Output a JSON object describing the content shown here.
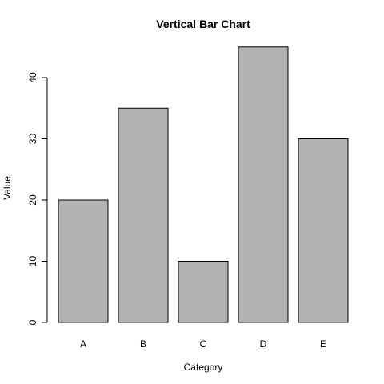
{
  "chart_data": {
    "type": "bar",
    "title": "Vertical Bar Chart",
    "xlabel": "Category",
    "ylabel": "Value",
    "categories": [
      "A",
      "B",
      "C",
      "D",
      "E"
    ],
    "values": [
      20,
      35,
      10,
      45,
      30
    ],
    "y_ticks": [
      "0",
      "10",
      "20",
      "30",
      "40"
    ],
    "ylim": [
      0,
      45
    ],
    "bar_color": "#b2b2b2",
    "bar_border_color": "#000000",
    "grid": false,
    "legend": "none"
  }
}
